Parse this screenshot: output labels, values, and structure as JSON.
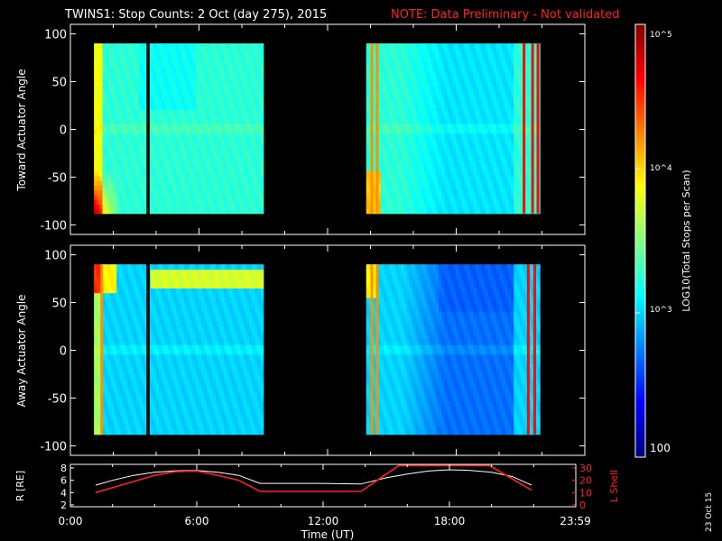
{
  "header": {
    "title": "TWINS1: Stop Counts:  2 Oct (day 275), 2015",
    "note": "NOTE: Data Preliminary - Not validated"
  },
  "colors": {
    "background": "#000000",
    "text": "#ffffff",
    "note": "#ff2020",
    "lshell": "#ff2020",
    "r_line": "#ffffff"
  },
  "side_stamp": "23 Oct 15",
  "colorbar": {
    "label": "LOG10(Total Stops per Scan)",
    "ticks": [
      "10^5",
      "10^4",
      "10^3",
      "100"
    ],
    "colormap": [
      "#00007f",
      "#0000ff",
      "#0080ff",
      "#00ffff",
      "#80ff80",
      "#ffff00",
      "#ff8000",
      "#ff0000",
      "#800000"
    ]
  },
  "chart_data": [
    {
      "type": "heatmap",
      "panel": "toward",
      "ylabel": "Toward Actuator Angle",
      "ylim": [
        -110,
        110
      ],
      "yticks": [
        "100",
        "50",
        "0",
        "-50",
        "-100"
      ],
      "x_range_hours": [
        0,
        24
      ],
      "data_blocks_hours": [
        [
          1.1,
          9.0
        ],
        [
          13.8,
          21.9
        ]
      ],
      "data_angle_range": [
        -88,
        90
      ],
      "gaps_hours": [
        [
          3.55,
          3.7
        ]
      ],
      "bright_stripes_hours": [
        14.0,
        14.25,
        21.1,
        21.5,
        21.75
      ],
      "background_level": "log10 ~3.2 (cyan)",
      "hot_regions": [
        "near 1.2-2.5 UT angles -50 to -88 (red/orange)",
        "near 13.9-14.5 UT angles -50 to -88"
      ]
    },
    {
      "type": "heatmap",
      "panel": "away",
      "ylabel": "Away Actuator Angle",
      "ylim": [
        -110,
        110
      ],
      "yticks": [
        "100",
        "50",
        "0",
        "-50",
        "-100"
      ],
      "x_range_hours": [
        0,
        24
      ],
      "data_blocks_hours": [
        [
          1.1,
          9.0
        ],
        [
          13.8,
          21.9
        ]
      ],
      "data_angle_range": [
        -88,
        90
      ],
      "gaps_hours": [
        [
          3.55,
          3.7
        ]
      ],
      "bright_stripes_hours": [
        1.4,
        14.0,
        14.25,
        21.3,
        21.6
      ],
      "background_level": "log10 ~3.0 (cyan/light blue)",
      "hot_regions": [
        "band near +70 to +90 deg from 3.7 to 9.0 UT (orange/red)",
        "near 1.2-2.0 UT angles +60 to +90"
      ]
    },
    {
      "type": "line",
      "panel": "orbit",
      "xlabel": "Time (UT)",
      "x_ticks": [
        "0:00",
        "6:00",
        "12:00",
        "18:00",
        "23:59"
      ],
      "left_axis": {
        "label": "R [RE]",
        "ticks": [
          "8",
          "6",
          "4",
          "2"
        ],
        "ylim": [
          2,
          8
        ]
      },
      "right_axis": {
        "label": "L Shell",
        "ticks": [
          "30",
          "20",
          "10",
          "0"
        ],
        "ylim": [
          0,
          30
        ]
      },
      "series": [
        {
          "name": "R [RE]",
          "axis": "left",
          "x": [
            1.2,
            2,
            3,
            4,
            5,
            6,
            7,
            8,
            9.0,
            10,
            12,
            13.8,
            15,
            16,
            17,
            18,
            19,
            20,
            21,
            21.9
          ],
          "values": [
            5.2,
            6.0,
            6.8,
            7.3,
            7.55,
            7.6,
            7.3,
            6.8,
            5.5,
            5.5,
            5.5,
            5.4,
            6.4,
            7.0,
            7.5,
            7.7,
            7.6,
            7.3,
            6.6,
            5.2
          ]
        },
        {
          "name": "L Shell",
          "axis": "right",
          "x": [
            1.2,
            2,
            3,
            4,
            5,
            6,
            7,
            8,
            9.0,
            10,
            12,
            13.8,
            15,
            15.6,
            19.9,
            20.5,
            21.9
          ],
          "values": [
            10,
            14,
            19,
            24,
            27,
            27.5,
            24,
            20,
            11,
            11,
            11,
            11,
            25,
            32,
            32,
            26,
            12
          ]
        }
      ]
    }
  ]
}
